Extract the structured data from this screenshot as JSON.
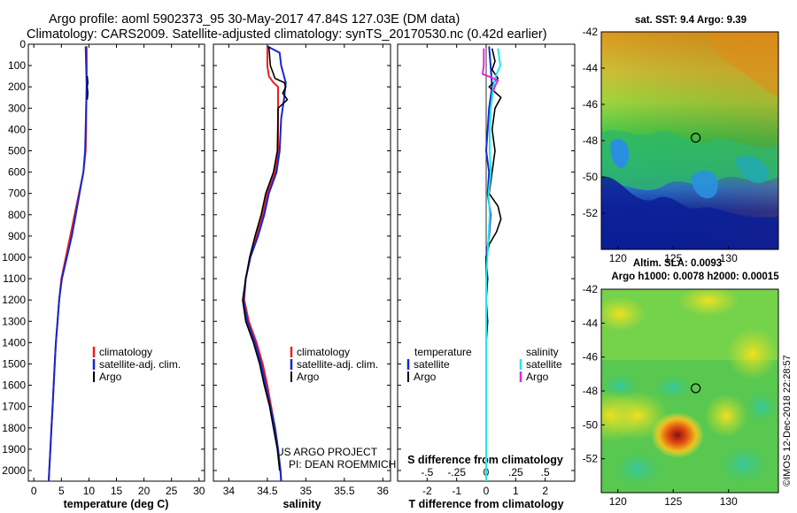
{
  "header": {
    "title_line1": "Argo profile: aoml 5902373_95 30-May-2017 47.84S 127.03E (DM data)",
    "title_line2": "Climatology: CARS2009. Satellite-adjusted climatology: synTS_20170530.nc (0.42d earlier)"
  },
  "colors": {
    "climatology": "#e8201c",
    "satellite": "#1428d0",
    "argo": "#000000",
    "sat_salinity": "#22e6f0",
    "argo_salinity": "#e628d8"
  },
  "chart_data": [
    {
      "id": "temperature",
      "type": "line",
      "xlabel": "temperature (deg C)",
      "ylabel": "",
      "xlim": [
        -1,
        31
      ],
      "ylim": [
        2050,
        0
      ],
      "xticks": [
        0,
        5,
        10,
        15,
        20,
        25,
        30
      ],
      "yticks": [
        0,
        100,
        200,
        300,
        400,
        500,
        600,
        700,
        800,
        900,
        1000,
        1100,
        1200,
        1300,
        1400,
        1500,
        1600,
        1700,
        1800,
        1900,
        2000
      ],
      "legend": [
        "climatology",
        "satellite-adj. clim.",
        "Argo"
      ],
      "series": [
        {
          "name": "climatology",
          "color_key": "climatology",
          "points": [
            [
              9.6,
              10
            ],
            [
              9.6,
              100
            ],
            [
              9.6,
              200
            ],
            [
              9.5,
              300
            ],
            [
              9.5,
              400
            ],
            [
              9.4,
              500
            ],
            [
              9.0,
              600
            ],
            [
              8.2,
              700
            ],
            [
              7.4,
              800
            ],
            [
              6.6,
              900
            ],
            [
              5.8,
              1000
            ],
            [
              5.0,
              1100
            ],
            [
              4.6,
              1200
            ],
            [
              4.3,
              1300
            ],
            [
              4.0,
              1400
            ],
            [
              3.8,
              1500
            ],
            [
              3.6,
              1600
            ],
            [
              3.4,
              1700
            ],
            [
              3.2,
              1800
            ],
            [
              3.0,
              1900
            ],
            [
              2.8,
              2000
            ],
            [
              2.7,
              2050
            ]
          ]
        },
        {
          "name": "satellite-adj. clim.",
          "color_key": "satellite",
          "points": [
            [
              9.4,
              10
            ],
            [
              9.5,
              100
            ],
            [
              9.6,
              200
            ],
            [
              9.5,
              300
            ],
            [
              9.4,
              400
            ],
            [
              9.3,
              500
            ],
            [
              9.0,
              600
            ],
            [
              8.3,
              700
            ],
            [
              7.6,
              800
            ],
            [
              6.9,
              900
            ],
            [
              6.0,
              1000
            ],
            [
              5.1,
              1100
            ],
            [
              4.6,
              1200
            ],
            [
              4.3,
              1300
            ],
            [
              4.0,
              1400
            ],
            [
              3.8,
              1500
            ],
            [
              3.6,
              1600
            ],
            [
              3.4,
              1700
            ],
            [
              3.2,
              1800
            ],
            [
              3.0,
              1900
            ],
            [
              2.8,
              2000
            ],
            [
              2.7,
              2050
            ]
          ]
        },
        {
          "name": "Argo",
          "color_key": "argo",
          "points": [
            [
              9.7,
              150
            ],
            [
              9.8,
              180
            ],
            [
              9.7,
              200
            ],
            [
              9.8,
              230
            ],
            [
              9.7,
              260
            ]
          ]
        }
      ]
    },
    {
      "id": "salinity",
      "type": "line",
      "xlabel": "salinity",
      "ylabel": "",
      "xlim": [
        33.8,
        36.1
      ],
      "ylim": [
        2050,
        0
      ],
      "xticks": [
        34,
        34.5,
        35,
        35.5,
        36
      ],
      "legend": [
        "climatology",
        "satellite-adj. clim.",
        "Argo"
      ],
      "series": [
        {
          "name": "climatology",
          "color_key": "climatology",
          "points": [
            [
              34.5,
              10
            ],
            [
              34.5,
              100
            ],
            [
              34.52,
              150
            ],
            [
              34.58,
              180
            ],
            [
              34.64,
              200
            ],
            [
              34.64,
              300
            ],
            [
              34.64,
              500
            ],
            [
              34.6,
              600
            ],
            [
              34.5,
              700
            ],
            [
              34.44,
              800
            ],
            [
              34.36,
              900
            ],
            [
              34.28,
              1000
            ],
            [
              34.22,
              1100
            ],
            [
              34.2,
              1200
            ],
            [
              34.26,
              1300
            ],
            [
              34.36,
              1400
            ],
            [
              34.44,
              1500
            ],
            [
              34.5,
              1600
            ],
            [
              34.55,
              1700
            ],
            [
              34.6,
              1800
            ],
            [
              34.64,
              1900
            ],
            [
              34.67,
              2000
            ],
            [
              34.68,
              2050
            ]
          ]
        },
        {
          "name": "satellite-adj. clim.",
          "color_key": "satellite",
          "points": [
            [
              34.5,
              10
            ],
            [
              34.66,
              40
            ],
            [
              34.68,
              100
            ],
            [
              34.74,
              180
            ],
            [
              34.72,
              250
            ],
            [
              34.68,
              350
            ],
            [
              34.66,
              500
            ],
            [
              34.62,
              600
            ],
            [
              34.52,
              700
            ],
            [
              34.46,
              800
            ],
            [
              34.38,
              900
            ],
            [
              34.28,
              1000
            ],
            [
              34.22,
              1100
            ],
            [
              34.19,
              1200
            ],
            [
              34.24,
              1300
            ],
            [
              34.34,
              1400
            ],
            [
              34.42,
              1500
            ],
            [
              34.48,
              1600
            ],
            [
              34.54,
              1700
            ],
            [
              34.6,
              1800
            ],
            [
              34.64,
              1900
            ],
            [
              34.67,
              2000
            ],
            [
              34.68,
              2050
            ]
          ]
        },
        {
          "name": "Argo",
          "color_key": "argo",
          "points": [
            [
              34.52,
              10
            ],
            [
              34.54,
              100
            ],
            [
              34.6,
              160
            ],
            [
              34.72,
              180
            ],
            [
              34.74,
              200
            ],
            [
              34.7,
              230
            ],
            [
              34.76,
              260
            ],
            [
              34.64,
              300
            ],
            [
              34.63,
              500
            ],
            [
              34.58,
              600
            ],
            [
              34.48,
              700
            ],
            [
              34.42,
              800
            ],
            [
              34.34,
              900
            ],
            [
              34.27,
              1000
            ],
            [
              34.22,
              1100
            ],
            [
              34.18,
              1200
            ],
            [
              34.22,
              1300
            ],
            [
              34.32,
              1400
            ],
            [
              34.4,
              1500
            ],
            [
              34.46,
              1600
            ],
            [
              34.53,
              1700
            ],
            [
              34.58,
              1800
            ],
            [
              34.63,
              1900
            ],
            [
              34.66,
              2000
            ]
          ]
        }
      ],
      "notes": [
        "US ARGO PROJECT",
        "PI: DEAN ROEMMICH"
      ]
    },
    {
      "id": "difference",
      "type": "line",
      "xlabel": "T difference from climatology",
      "top_label": "S difference from climatology",
      "xlim": [
        -3,
        3
      ],
      "ylim": [
        2050,
        0
      ],
      "xticks": [
        -2,
        -1,
        0,
        1,
        2
      ],
      "s_xticks": [
        -0.5,
        -0.25,
        0,
        0.25,
        0.5
      ],
      "s_xlim": [
        -0.75,
        0.75
      ],
      "legend_left_title": "temperature",
      "legend_right_title": "salinity",
      "legend_left": [
        "satellite",
        "Argo"
      ],
      "legend_right": [
        "satellite",
        "Argo"
      ],
      "series": [
        {
          "name": "T satellite",
          "color_key": "satellite",
          "axis": "T",
          "points": [
            [
              0.1,
              10
            ],
            [
              0.15,
              100
            ],
            [
              0.2,
              200
            ],
            [
              0.1,
              300
            ],
            [
              0.05,
              400
            ],
            [
              0.0,
              500
            ],
            [
              0.1,
              600
            ],
            [
              0.05,
              700
            ],
            [
              0.15,
              800
            ],
            [
              0.1,
              900
            ],
            [
              0.0,
              1000
            ],
            [
              0.0,
              1100
            ],
            [
              0.0,
              1200
            ],
            [
              0.0,
              1300
            ],
            [
              0.0,
              1400
            ],
            [
              0.0,
              1500
            ],
            [
              0.0,
              1600
            ],
            [
              0.0,
              1700
            ],
            [
              0.0,
              1800
            ],
            [
              0.0,
              1900
            ],
            [
              0.0,
              2000
            ],
            [
              0.0,
              2050
            ]
          ]
        },
        {
          "name": "T Argo",
          "color_key": "argo",
          "axis": "T",
          "points": [
            [
              0.2,
              20
            ],
            [
              0.3,
              80
            ],
            [
              0.2,
              120
            ],
            [
              0.4,
              160
            ],
            [
              0.1,
              200
            ],
            [
              0.5,
              250
            ],
            [
              0.3,
              300
            ],
            [
              0.2,
              400
            ],
            [
              0.3,
              500
            ],
            [
              0.2,
              600
            ],
            [
              0.1,
              700
            ],
            [
              0.4,
              760
            ],
            [
              0.5,
              820
            ],
            [
              0.35,
              880
            ],
            [
              0.1,
              940
            ],
            [
              0.0,
              1000
            ],
            [
              0.05,
              1100
            ],
            [
              0.0,
              1200
            ],
            [
              0.05,
              1300
            ],
            [
              0.0,
              1400
            ],
            [
              0.0,
              1500
            ]
          ]
        },
        {
          "name": "S satellite",
          "color_key": "sat_salinity",
          "axis": "S",
          "points": [
            [
              0.1,
              20
            ],
            [
              0.12,
              100
            ],
            [
              0.08,
              150
            ],
            [
              0.06,
              200
            ],
            [
              0.04,
              300
            ],
            [
              0.03,
              400
            ],
            [
              0.03,
              500
            ],
            [
              0.04,
              600
            ],
            [
              0.02,
              700
            ],
            [
              0.03,
              800
            ],
            [
              0.02,
              900
            ],
            [
              0.01,
              1000
            ],
            [
              0.0,
              1100
            ],
            [
              0.0,
              1200
            ],
            [
              0.0,
              1300
            ],
            [
              0.0,
              1400
            ],
            [
              0.0,
              1500
            ],
            [
              0.0,
              1600
            ],
            [
              0.0,
              1700
            ],
            [
              0.0,
              1800
            ],
            [
              0.0,
              1900
            ],
            [
              0.0,
              2000
            ],
            [
              0.0,
              2050
            ]
          ]
        },
        {
          "name": "S Argo",
          "color_key": "argo_salinity",
          "axis": "S",
          "points": [
            [
              -0.02,
              20
            ],
            [
              -0.02,
              100
            ],
            [
              -0.03,
              140
            ],
            [
              0.06,
              160
            ],
            [
              0.1,
              170
            ],
            [
              0.08,
              190
            ],
            [
              0.06,
              220
            ]
          ]
        }
      ]
    }
  ],
  "maps": {
    "sst": {
      "title": "sat. SST: 9.4 Argo: 9.39",
      "xticks": [
        120,
        125,
        130
      ],
      "yticks": [
        -42,
        -44,
        -46,
        -48,
        -50,
        -52
      ],
      "xlim": [
        118.5,
        134.5
      ],
      "ylim": [
        -42,
        -54
      ],
      "marker": [
        127.03,
        -47.84
      ]
    },
    "sla": {
      "title1": "Altim. SLA: 0.0093",
      "title2": "Argo h1000: 0.0078 h2000: 0.00015",
      "xticks": [
        120,
        125,
        130
      ],
      "yticks": [
        -42,
        -44,
        -46,
        -48,
        -50,
        -52
      ],
      "xlim": [
        118.5,
        134.5
      ],
      "ylim": [
        -42,
        -54
      ],
      "marker": [
        127.03,
        -47.84
      ]
    }
  },
  "stamp": "©IMOS 12-Dec-2018 22:28:57"
}
